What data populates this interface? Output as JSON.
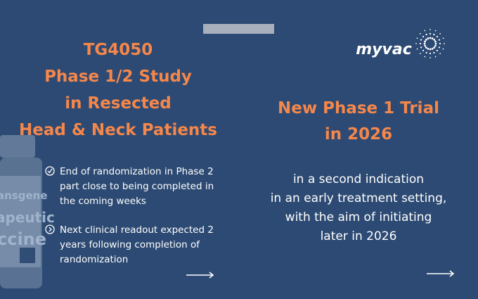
{
  "left": {
    "title_lines": [
      "TG4050",
      "Phase 1/2 Study",
      "in Resected",
      "Head & Neck Patients"
    ],
    "bullets": [
      [
        "End of randomization in Phase 2",
        "part close to being completed in",
        "the coming weeks"
      ],
      [
        "Next clinical readout expected 2",
        "years following completion of",
        "randomization"
      ]
    ],
    "vial_label": [
      "ansgene",
      "apeutic",
      "ccine"
    ]
  },
  "right": {
    "logo": "myvac",
    "title_lines": [
      "New Phase 1 Trial",
      "in 2026"
    ],
    "body_lines": [
      "in a second indication",
      "in an early treatment setting,",
      "with the aim of initiating",
      "later in 2026"
    ]
  }
}
